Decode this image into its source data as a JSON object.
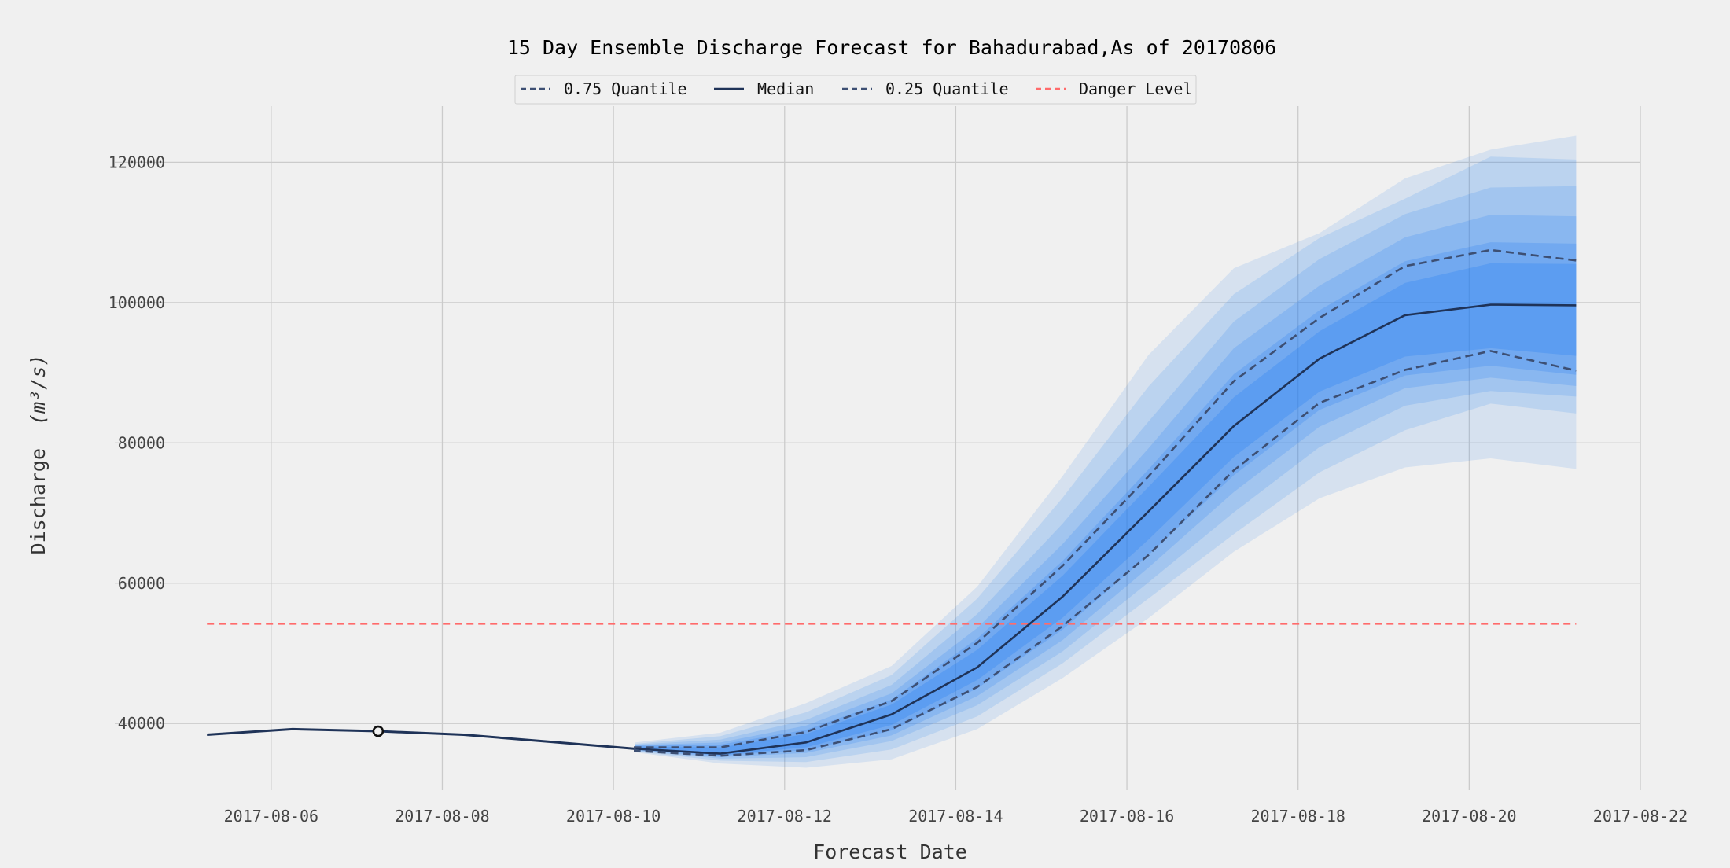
{
  "colors": {
    "background": "#f0f0f0",
    "grid": "#cbcbcb",
    "quantile": "#3d4f73",
    "median": "#1f3358",
    "danger": "#ff6b6b",
    "ensemble": "#1f7cf2",
    "text": "#222222"
  },
  "chart_data": {
    "type": "line",
    "title": "15 Day Ensemble Discharge Forecast for Bahadurabad,As of 20170806",
    "xlabel": "Forecast Date",
    "ylabel": "Discharge",
    "ylabel_unit": "(m³/s)",
    "x_ticks": [
      "2017-08-06",
      "2017-08-08",
      "2017-08-10",
      "2017-08-12",
      "2017-08-14",
      "2017-08-16",
      "2017-08-18",
      "2017-08-20",
      "2017-08-22"
    ],
    "y_ticks": [
      40000,
      60000,
      80000,
      100000,
      120000
    ],
    "xlim": [
      "2017-08-05",
      "2017-08-22"
    ],
    "ylim": [
      30500,
      128000
    ],
    "grid": true,
    "legend_position": "top-center",
    "legend": [
      "0.75 Quantile",
      "Median",
      "0.25 Quantile",
      "Danger Level"
    ],
    "danger_level": 54200,
    "observed": {
      "x": [
        "2017-08-05 06:00",
        "2017-08-06 06:00",
        "2017-08-07 06:00",
        "2017-08-08 06:00",
        "2017-08-09 06:00",
        "2017-08-10 06:00"
      ],
      "y": [
        38400,
        39200,
        38900,
        38400,
        37400,
        36400
      ]
    },
    "current_marker": {
      "x": "2017-08-07 06:00",
      "y": 38900
    },
    "forecast_x": [
      "2017-08-10 06:00",
      "2017-08-11 06:00",
      "2017-08-12 06:00",
      "2017-08-13 06:00",
      "2017-08-14 06:00",
      "2017-08-15 06:00",
      "2017-08-16 06:00",
      "2017-08-17 06:00",
      "2017-08-18 06:00",
      "2017-08-19 06:00",
      "2017-08-20 06:00",
      "2017-08-21 06:00"
    ],
    "series": [
      {
        "name": "0.75 Quantile",
        "style": "dashed",
        "values": [
          36600,
          36600,
          38800,
          43200,
          51500,
          62500,
          75200,
          88800,
          97800,
          105200,
          107500,
          106000
        ]
      },
      {
        "name": "Median",
        "style": "solid",
        "values": [
          36400,
          35700,
          37300,
          41300,
          48000,
          58100,
          70200,
          82400,
          92000,
          98200,
          99700,
          99600
        ]
      },
      {
        "name": "0.25 Quantile",
        "style": "dashed",
        "values": [
          36100,
          35400,
          36200,
          39200,
          45200,
          53900,
          64000,
          76100,
          85700,
          90400,
          93100,
          90300
        ]
      }
    ],
    "ensemble_bands": [
      {
        "lower": [
          35900,
          34300,
          33700,
          34900,
          39200,
          46500,
          55000,
          64500,
          72100,
          76500,
          77800,
          76300
        ],
        "upper": [
          37300,
          38700,
          42900,
          48200,
          59500,
          75300,
          92500,
          104900,
          109900,
          117700,
          121800,
          123800
        ]
      },
      {
        "lower": [
          36000,
          34700,
          34500,
          36300,
          41000,
          48600,
          57800,
          67000,
          75800,
          81800,
          85600,
          84200
        ],
        "upper": [
          37100,
          38200,
          41600,
          46900,
          57800,
          72200,
          88000,
          101200,
          109200,
          114800,
          120800,
          120400
        ]
      },
      {
        "lower": [
          36100,
          35000,
          35200,
          37500,
          42600,
          50300,
          60100,
          70100,
          79400,
          85300,
          87400,
          86600
        ],
        "upper": [
          37000,
          37700,
          40500,
          45500,
          55600,
          68500,
          83000,
          97300,
          106200,
          112600,
          116400,
          116600
        ]
      },
      {
        "lower": [
          36200,
          35200,
          35800,
          38300,
          43900,
          51900,
          62200,
          73000,
          82300,
          87800,
          89300,
          88100
        ],
        "upper": [
          36900,
          37300,
          39700,
          44300,
          53600,
          65600,
          79200,
          93500,
          102400,
          109300,
          112500,
          112300
        ]
      },
      {
        "lower": [
          36300,
          35400,
          36200,
          39000,
          45000,
          53400,
          64000,
          75400,
          84700,
          89600,
          91000,
          89700
        ],
        "upper": [
          36800,
          37000,
          39100,
          43400,
          52100,
          63200,
          76200,
          89800,
          98900,
          105900,
          108600,
          108400
        ]
      },
      {
        "lower": [
          36350,
          35500,
          36600,
          39800,
          46200,
          55100,
          66200,
          78000,
          87300,
          92300,
          93500,
          92400
        ],
        "upper": [
          36700,
          36600,
          38500,
          42700,
          50500,
          61100,
          73700,
          86500,
          95900,
          102800,
          105600,
          105500
        ]
      }
    ]
  }
}
